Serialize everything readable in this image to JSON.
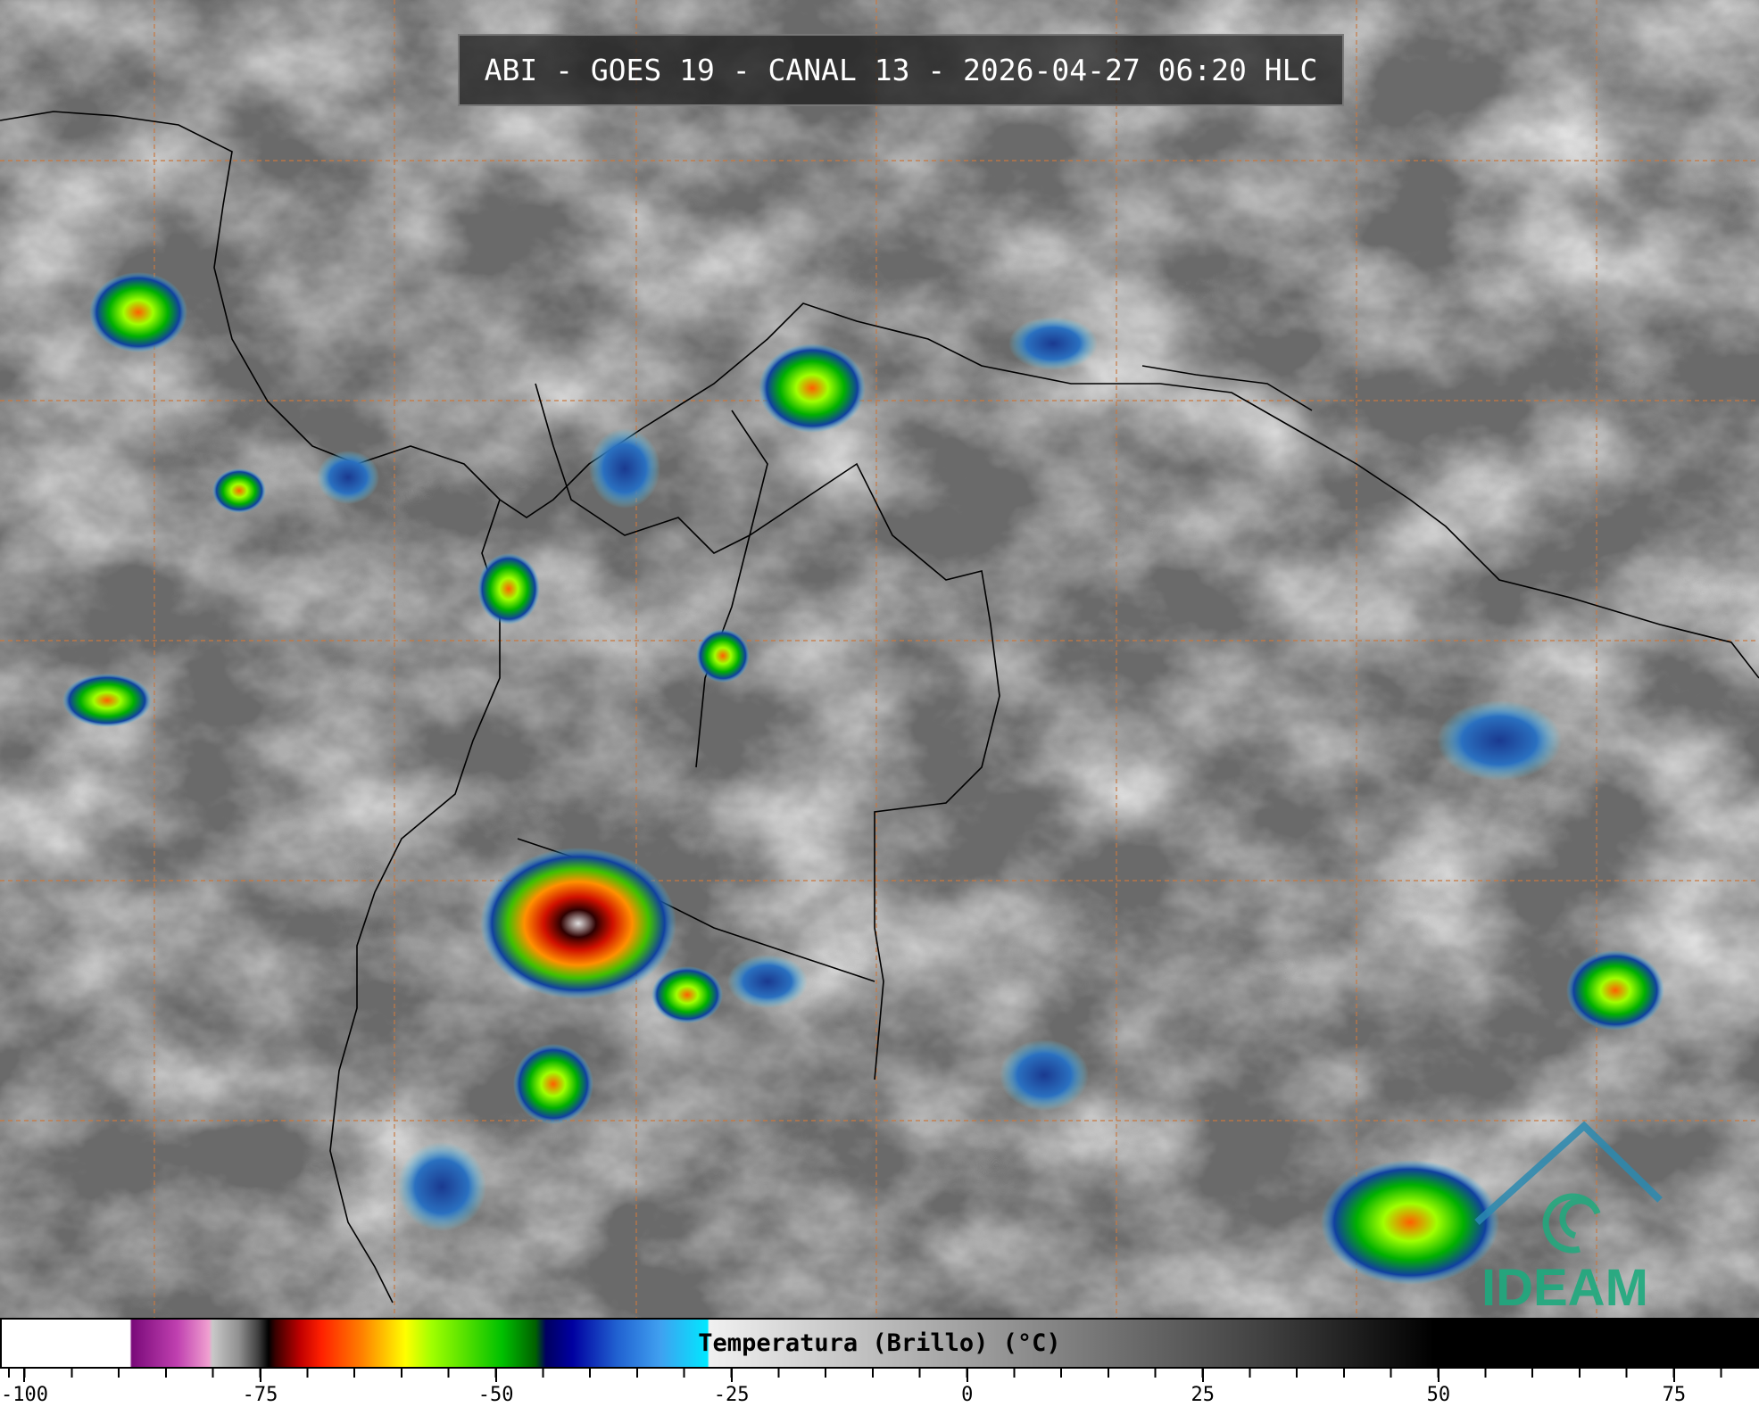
{
  "header": {
    "title": "ABI - GOES 19 - CANAL 13 - 2026-04-27 06:20 HLC"
  },
  "colorbar": {
    "label": "Temperatura (Brillo) (°C)",
    "xlim": [
      -102.6,
      84
    ],
    "ticks": [
      -100,
      -75,
      -50,
      -25,
      0,
      25,
      50,
      75
    ]
  },
  "logo": {
    "text": "IDEAM"
  }
}
